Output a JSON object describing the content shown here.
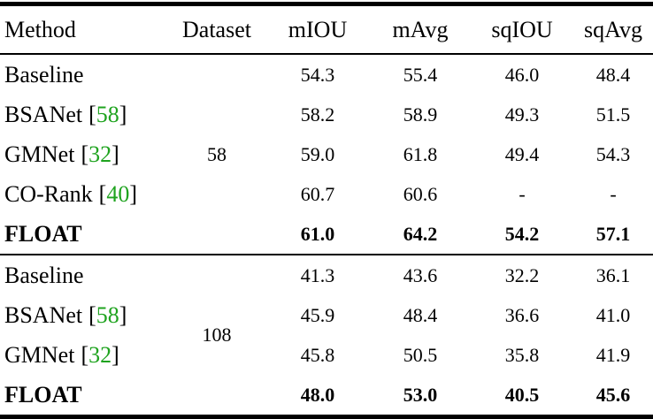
{
  "colors": {
    "citation_green": "#1fa31f",
    "text": "#000000",
    "rule": "#000000",
    "background": "#ffffff"
  },
  "table": {
    "cite_open": "[",
    "cite_close": "]",
    "columns": [
      "Method",
      "Dataset",
      "mIOU",
      "mAvg",
      "sqIOU",
      "sqAvg"
    ],
    "groups": [
      {
        "dataset": "58",
        "rows": [
          {
            "method": "Baseline",
            "values": [
              "54.3",
              "55.4",
              "46.0",
              "48.4"
            ]
          },
          {
            "method": "BSANet",
            "cite": "58",
            "values": [
              "58.2",
              "58.9",
              "49.3",
              "51.5"
            ]
          },
          {
            "method": "GMNet",
            "cite": "32",
            "values": [
              "59.0",
              "61.8",
              "49.4",
              "54.3"
            ]
          },
          {
            "method": "CO-Rank",
            "cite": "40",
            "values": [
              "60.7",
              "60.6",
              "-",
              "-"
            ]
          },
          {
            "method": "FLOAT",
            "bold": true,
            "values": [
              "61.0",
              "64.2",
              "54.2",
              "57.1"
            ]
          }
        ]
      },
      {
        "dataset": "108",
        "rows": [
          {
            "method": "Baseline",
            "values": [
              "41.3",
              "43.6",
              "32.2",
              "36.1"
            ]
          },
          {
            "method": "BSANet",
            "cite": "58",
            "values": [
              "45.9",
              "48.4",
              "36.6",
              "41.0"
            ]
          },
          {
            "method": "GMNet",
            "cite": "32",
            "values": [
              "45.8",
              "50.5",
              "35.8",
              "41.9"
            ]
          },
          {
            "method": "FLOAT",
            "bold": true,
            "values": [
              "48.0",
              "53.0",
              "40.5",
              "45.6"
            ]
          }
        ]
      }
    ]
  }
}
